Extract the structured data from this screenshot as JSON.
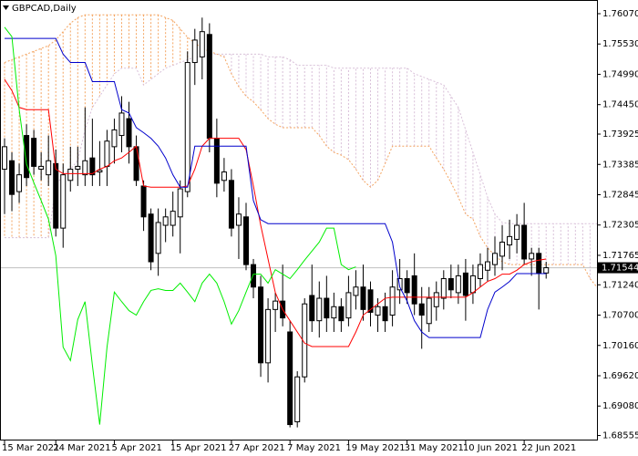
{
  "chart_data": {
    "type": "candlestick",
    "title": "GBPCAD,Daily",
    "categories": [
      "15 Mar 2021",
      null,
      null,
      null,
      null,
      null,
      null,
      "24 Mar 2021",
      null,
      null,
      null,
      null,
      null,
      null,
      null,
      "5 Apr 2021",
      null,
      null,
      null,
      null,
      null,
      null,
      null,
      "15 Apr 2021",
      null,
      null,
      null,
      null,
      null,
      null,
      null,
      "27 Apr 2021",
      null,
      null,
      null,
      null,
      null,
      null,
      null,
      "7 May 2021",
      null,
      null,
      null,
      null,
      null,
      null,
      null,
      "19 May 2021",
      null,
      null,
      null,
      null,
      null,
      null,
      null,
      "31 May 2021",
      null,
      null,
      null,
      null,
      null,
      null,
      null,
      "10 Jun 2021",
      null,
      null,
      null,
      null,
      null,
      null,
      null,
      "22 Jun 2021",
      null,
      null,
      null,
      null,
      null,
      null,
      null,
      null,
      null,
      null
    ],
    "candles": {
      "up_color": "#ffffff",
      "down_color": "#000000",
      "wick_color": "#000000",
      "open": [
        1.733,
        1.7345,
        1.729,
        1.739,
        1.7385,
        1.733,
        1.732,
        1.734,
        1.7225,
        1.731,
        1.733,
        1.732,
        1.735,
        1.7325,
        1.7335,
        1.737,
        1.739,
        1.742,
        1.737,
        1.73,
        1.725,
        1.718,
        1.723,
        1.723,
        1.7245,
        1.729,
        1.752,
        1.753,
        1.757,
        1.7385,
        1.731,
        1.731,
        1.723,
        1.7245,
        1.716,
        1.712,
        1.6985,
        1.708,
        1.7095,
        1.704,
        1.688,
        1.696,
        1.7105,
        1.706,
        1.71,
        1.7065,
        1.7085,
        1.7065,
        1.7105,
        1.712,
        1.7115,
        1.707,
        1.7085,
        1.707,
        1.7115,
        1.7135,
        1.714,
        1.709,
        1.7055,
        1.7085,
        1.71,
        1.7135,
        1.711,
        1.7145,
        1.711,
        1.7135,
        1.715,
        1.716,
        1.7175,
        1.7195,
        1.7205,
        1.723,
        1.717,
        1.718,
        1.7145,
        null,
        null,
        null,
        null,
        null,
        null,
        null
      ],
      "high": [
        1.7385,
        1.736,
        1.734,
        1.741,
        1.74,
        1.736,
        1.739,
        1.7365,
        1.734,
        1.737,
        1.737,
        1.744,
        1.742,
        1.738,
        1.74,
        1.742,
        1.746,
        1.745,
        1.739,
        1.731,
        1.726,
        1.726,
        1.726,
        1.729,
        1.731,
        1.754,
        1.758,
        1.76,
        1.759,
        1.742,
        1.735,
        1.733,
        1.728,
        1.727,
        1.717,
        1.714,
        1.71,
        1.711,
        1.716,
        1.706,
        1.697,
        1.71,
        1.716,
        1.713,
        1.714,
        1.711,
        1.71,
        1.714,
        1.715,
        1.716,
        1.713,
        1.71,
        1.711,
        1.715,
        1.717,
        1.715,
        1.718,
        1.712,
        1.712,
        1.713,
        1.715,
        1.716,
        1.716,
        1.717,
        1.716,
        1.718,
        1.719,
        1.721,
        1.723,
        1.724,
        1.725,
        1.727,
        1.719,
        1.719,
        1.7165,
        null,
        null,
        null,
        null,
        null,
        null,
        null
      ],
      "low": [
        1.725,
        1.7255,
        1.727,
        1.73,
        1.732,
        1.731,
        1.73,
        1.721,
        1.719,
        1.729,
        1.73,
        1.73,
        1.73,
        1.73,
        1.73,
        1.734,
        1.736,
        1.734,
        1.73,
        1.722,
        1.715,
        1.714,
        1.72,
        1.721,
        1.718,
        1.728,
        1.748,
        1.749,
        1.736,
        1.728,
        1.729,
        1.721,
        1.717,
        1.715,
        1.71,
        1.696,
        1.695,
        1.704,
        1.705,
        1.687,
        1.687,
        1.695,
        1.704,
        1.703,
        1.704,
        1.704,
        1.704,
        1.705,
        1.708,
        1.706,
        1.705,
        1.704,
        1.704,
        1.705,
        1.709,
        1.709,
        1.707,
        1.701,
        1.704,
        1.706,
        1.708,
        1.71,
        1.709,
        1.706,
        1.709,
        1.712,
        1.713,
        1.714,
        1.715,
        1.717,
        1.718,
        1.716,
        1.714,
        1.708,
        1.7135,
        null,
        null,
        null,
        null,
        null,
        null,
        null
      ],
      "close": [
        1.737,
        1.7285,
        1.732,
        1.7315,
        1.7335,
        1.7335,
        1.7345,
        1.7225,
        1.732,
        1.733,
        1.7335,
        1.7345,
        1.732,
        1.7328,
        1.738,
        1.74,
        1.743,
        1.737,
        1.731,
        1.7245,
        1.7165,
        1.7235,
        1.7245,
        1.7255,
        1.7295,
        1.752,
        1.756,
        1.7575,
        1.7385,
        1.7305,
        1.7325,
        1.7225,
        1.725,
        1.716,
        1.712,
        1.6985,
        1.708,
        1.7095,
        1.7065,
        1.6875,
        1.696,
        1.709,
        1.706,
        1.71,
        1.7065,
        1.7085,
        1.706,
        1.711,
        1.712,
        1.708,
        1.7075,
        1.7085,
        1.706,
        1.712,
        1.7135,
        1.711,
        1.709,
        1.707,
        1.71,
        1.711,
        1.7135,
        1.7115,
        1.714,
        1.7105,
        1.714,
        1.716,
        1.7165,
        1.718,
        1.72,
        1.721,
        1.723,
        1.717,
        1.718,
        1.7145,
        1.71544,
        null,
        null,
        null,
        null,
        null,
        null,
        null
      ]
    },
    "cloud": {
      "span_a": {
        "color": "#f4a460",
        "values": [
          1.752,
          1.7525,
          1.753,
          1.7535,
          1.754,
          1.7545,
          1.755,
          1.756,
          1.7575,
          1.759,
          1.76,
          1.7605,
          1.7605,
          1.7605,
          1.7605,
          1.7605,
          1.7605,
          1.7605,
          1.7605,
          1.7605,
          1.7605,
          1.7605,
          1.76,
          1.7595,
          1.758,
          1.7565,
          1.7555,
          1.7545,
          1.754,
          1.7535,
          1.753,
          1.75,
          1.7477,
          1.746,
          1.745,
          1.7436,
          1.742,
          1.741,
          1.7404,
          1.7404,
          1.7404,
          1.7404,
          1.7404,
          1.739,
          1.7371,
          1.736,
          1.7355,
          1.7347,
          1.733,
          1.731,
          1.7298,
          1.731,
          1.734,
          1.7371,
          1.7371,
          1.7371,
          1.7371,
          1.7371,
          1.7371,
          1.735,
          1.733,
          1.7306,
          1.728,
          1.725,
          1.7241,
          1.721,
          1.719,
          1.7176,
          1.7165,
          1.716,
          1.716,
          1.716,
          1.716,
          1.716,
          1.716,
          1.716,
          1.716,
          1.716,
          1.716,
          1.716,
          1.7135,
          1.7119
        ]
      },
      "span_b": {
        "color": "#d8bfd8",
        "values": [
          1.7208,
          1.7208,
          1.7208,
          1.7208,
          1.7208,
          1.7208,
          1.7208,
          1.73,
          1.732,
          1.733,
          1.7345,
          1.74,
          1.744,
          1.746,
          1.748,
          1.75,
          1.751,
          1.751,
          1.751,
          1.748,
          1.749,
          1.75,
          1.751,
          1.7515,
          1.752,
          1.7525,
          1.753,
          1.753,
          1.7535,
          1.7535,
          1.7535,
          1.7535,
          1.7535,
          1.7535,
          1.7535,
          1.7535,
          1.753,
          1.753,
          1.753,
          1.7525,
          1.7515,
          1.7515,
          1.7515,
          1.7515,
          1.7515,
          1.751,
          1.751,
          1.751,
          1.751,
          1.751,
          1.751,
          1.751,
          1.751,
          1.751,
          1.751,
          1.751,
          1.75,
          1.7495,
          1.749,
          1.7485,
          1.748,
          1.746,
          1.744,
          1.74,
          1.736,
          1.732,
          1.728,
          1.725,
          1.7235,
          1.7233,
          1.7233,
          1.7233,
          1.7233,
          1.7233,
          1.7233,
          1.7233,
          1.7233,
          1.7233,
          1.7233,
          1.7233,
          1.7233,
          1.7233
        ]
      }
    },
    "lines": [
      {
        "color": "#ff0000",
        "values": [
          1.749,
          1.747,
          1.744,
          1.7436,
          1.7436,
          1.7436,
          1.7436,
          1.733,
          1.7322,
          1.7322,
          1.7322,
          1.7322,
          1.7322,
          1.733,
          1.7335,
          1.7345,
          1.735,
          1.736,
          1.7371,
          1.73,
          1.7298,
          1.7298,
          1.7298,
          1.7298,
          1.7298,
          1.73,
          1.733,
          1.7371,
          1.7385,
          1.7385,
          1.7385,
          1.7385,
          1.7385,
          1.7365,
          1.73,
          1.723,
          1.717,
          1.711,
          1.708,
          1.706,
          1.704,
          1.702,
          1.7014,
          1.7014,
          1.7014,
          1.7014,
          1.7014,
          1.7014,
          1.704,
          1.707,
          1.708,
          1.709,
          1.71,
          1.7102,
          1.7102,
          1.7102,
          1.7102,
          1.7102,
          1.7102,
          1.7102,
          1.7102,
          1.7102,
          1.7102,
          1.7102,
          1.711,
          1.712,
          1.713,
          1.7135,
          1.7143,
          1.7143,
          1.715,
          1.716,
          1.7165,
          1.7168,
          1.717,
          null,
          null,
          null,
          null,
          null,
          null,
          null
        ]
      },
      {
        "color": "#0000cc",
        "values": [
          1.7563,
          1.7563,
          1.7563,
          1.7563,
          1.7563,
          1.7563,
          1.7563,
          1.7563,
          1.7535,
          1.752,
          1.752,
          1.752,
          1.7486,
          1.7486,
          1.7486,
          1.7486,
          1.7436,
          1.743,
          1.7404,
          1.7395,
          1.7385,
          1.7371,
          1.735,
          1.732,
          1.7298,
          1.7298,
          1.7371,
          1.7371,
          1.7371,
          1.7371,
          1.7371,
          1.7371,
          1.7371,
          1.7371,
          1.7274,
          1.724,
          1.7233,
          1.7233,
          1.7233,
          1.7233,
          1.7233,
          1.7233,
          1.7233,
          1.7233,
          1.7233,
          1.7233,
          1.7233,
          1.7233,
          1.7233,
          1.7233,
          1.7233,
          1.7233,
          1.7233,
          1.72,
          1.712,
          1.7095,
          1.706,
          1.704,
          1.703,
          1.703,
          1.703,
          1.703,
          1.703,
          1.703,
          1.703,
          1.703,
          1.708,
          1.7111,
          1.712,
          1.713,
          1.7144,
          1.7144,
          1.7144,
          1.7144,
          1.7144,
          null,
          null,
          null,
          null,
          null,
          null,
          null
        ]
      },
      {
        "color": "#00ee00",
        "values": [
          1.7583,
          1.7566,
          1.7436,
          1.7339,
          1.7306,
          1.7274,
          1.7241,
          1.7176,
          1.7013,
          1.6989,
          1.7062,
          1.7094,
          1.6981,
          1.6875,
          1.7013,
          1.7111,
          1.7094,
          1.7078,
          1.707,
          1.7094,
          1.7114,
          1.7117,
          1.7114,
          1.7114,
          1.7127,
          1.7111,
          1.7094,
          1.7127,
          1.7143,
          1.7127,
          1.7094,
          1.7054,
          1.7078,
          1.7111,
          1.7143,
          1.7143,
          1.7127,
          1.7151,
          1.7143,
          1.7135,
          1.7151,
          1.7168,
          1.7184,
          1.72,
          1.7225,
          1.7225,
          1.716,
          1.7151,
          1.7156,
          null,
          null,
          null,
          null,
          null,
          null,
          null,
          null,
          null,
          null,
          null,
          null,
          null,
          null,
          null,
          null,
          null,
          null,
          null,
          null,
          null,
          null,
          null,
          null,
          null,
          null,
          null,
          null,
          null,
          null,
          null,
          null,
          null
        ]
      }
    ],
    "last_price": 1.71544,
    "ylim": [
      1.68515,
      1.76265
    ],
    "yticks": [
      {
        "value": 1.7607,
        "label": "1.76070"
      },
      {
        "value": 1.7553,
        "label": "1.75530"
      },
      {
        "value": 1.7499,
        "label": "1.74990"
      },
      {
        "value": 1.7445,
        "label": "1.74450"
      },
      1.73925,
      1.73385,
      1.72845,
      1.72305,
      1.71765,
      {
        "value": 1.7124,
        "label": "1.71240"
      },
      {
        "value": 1.707,
        "label": "1.70700"
      },
      {
        "value": 1.7016,
        "label": "1.70160"
      },
      {
        "value": 1.6962,
        "label": "1.69620"
      },
      {
        "value": 1.6908,
        "label": "1.69080"
      },
      1.68555
    ],
    "grid": false
  }
}
